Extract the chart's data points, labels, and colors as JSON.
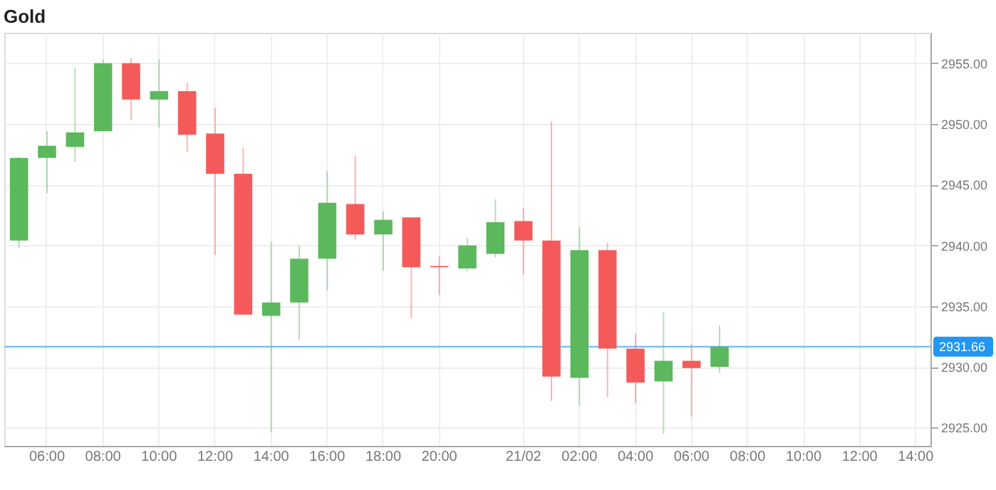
{
  "chart_data": {
    "type": "candlestick",
    "title": "Gold",
    "categories": [
      null,
      "06:00",
      null,
      "08:00",
      null,
      "10:00",
      null,
      "12:00",
      null,
      "14:00",
      null,
      "16:00",
      null,
      "18:00",
      null,
      "20:00",
      null,
      null,
      "21/02",
      null,
      "02:00",
      null,
      "04:00",
      null,
      "06:00",
      null,
      "08:00",
      null,
      "10:00",
      null,
      "12:00",
      null,
      "14:00"
    ],
    "ohlc": [
      [
        2940.4,
        2947.3,
        2939.8,
        2947.2
      ],
      [
        2947.2,
        2949.4,
        2944.3,
        2948.2
      ],
      [
        2948.1,
        2954.6,
        2946.9,
        2949.3
      ],
      [
        2949.4,
        2955.3,
        2949.4,
        2955.0
      ],
      [
        2955.0,
        2955.4,
        2950.3,
        2952.0
      ],
      [
        2952.0,
        2955.3,
        2949.7,
        2952.7
      ],
      [
        2952.7,
        2953.4,
        2947.7,
        2949.1
      ],
      [
        2949.2,
        2951.3,
        2939.2,
        2945.9
      ],
      [
        2945.9,
        2948.0,
        2934.3,
        2934.3
      ],
      [
        2934.2,
        2940.3,
        2924.6,
        2935.3
      ],
      [
        2935.3,
        2940.0,
        2932.2,
        2938.9
      ],
      [
        2938.9,
        2946.1,
        2936.3,
        2943.5
      ],
      [
        2943.4,
        2947.4,
        2940.5,
        2940.9
      ],
      [
        2940.9,
        2942.8,
        2937.9,
        2942.1
      ],
      [
        2942.3,
        2942.3,
        2934.0,
        2938.2
      ],
      [
        2938.3,
        2939.1,
        2935.9,
        2938.2
      ],
      [
        2938.1,
        2940.6,
        2937.9,
        2940.0
      ],
      [
        2939.3,
        2943.8,
        2939.0,
        2941.9
      ],
      [
        2942.0,
        2943.1,
        2937.6,
        2940.4
      ],
      [
        2940.4,
        2950.2,
        2927.2,
        2929.2
      ],
      [
        2929.1,
        2941.5,
        2926.8,
        2939.6
      ],
      [
        2939.6,
        2940.2,
        2927.5,
        2931.5
      ],
      [
        2931.5,
        2932.7,
        2927.0,
        2928.7
      ],
      [
        2928.8,
        2934.5,
        2924.5,
        2930.5
      ],
      [
        2930.5,
        2931.9,
        2925.9,
        2929.9
      ],
      [
        2930.0,
        2933.4,
        2929.5,
        2931.66
      ],
      null,
      null,
      null,
      null,
      null,
      null,
      null
    ],
    "colors": [
      "#5cb85c",
      "#5cb85c",
      "#5cb85c",
      "#5cb85c",
      "#f55a5a",
      "#5cb85c",
      "#f55a5a",
      "#f55a5a",
      "#f55a5a",
      "#5cb85c",
      "#5cb85c",
      "#5cb85c",
      "#f55a5a",
      "#5cb85c",
      "#f55a5a",
      "#f55a5a",
      "#5cb85c",
      "#5cb85c",
      "#f55a5a",
      "#f55a5a",
      "#5cb85c",
      "#f55a5a",
      "#f55a5a",
      "#5cb85c",
      "#f55a5a",
      "#5cb85c",
      null,
      null,
      null,
      null,
      null,
      null,
      null
    ],
    "ylim": [
      2923.5,
      2957.5
    ],
    "yticks": [
      {
        "value": 2925,
        "label": "2925.00"
      },
      {
        "value": 2930,
        "label": "2930.00"
      },
      {
        "value": 2935,
        "label": "2935.00"
      },
      {
        "value": 2940,
        "label": "2940.00"
      },
      {
        "value": 2945,
        "label": "2945.00"
      },
      {
        "value": 2950,
        "label": "2950.00"
      },
      {
        "value": 2955,
        "label": "2955.00"
      }
    ],
    "ref_lines": [
      {
        "axis": "y",
        "value": 2931.66,
        "label": "2931.66",
        "color": "#64b5f6"
      }
    ],
    "grid": true
  }
}
